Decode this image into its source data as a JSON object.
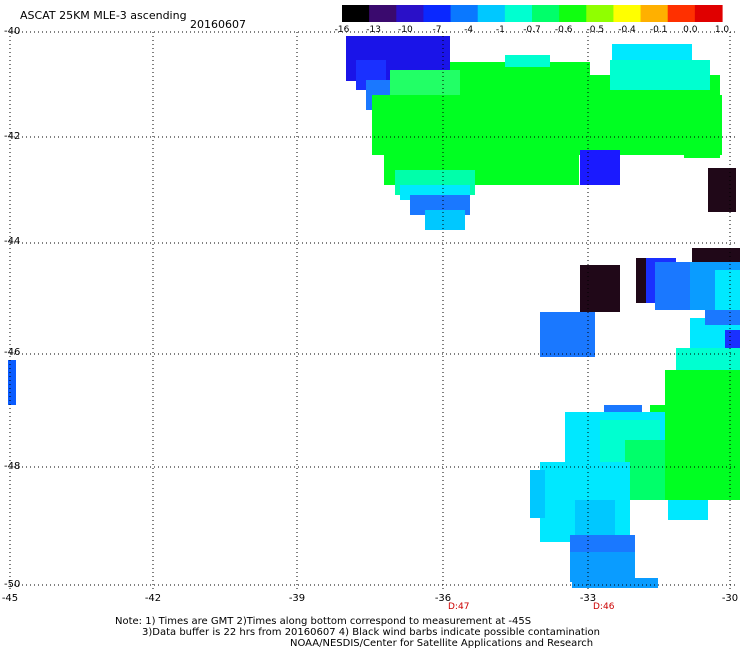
{
  "title": "ASCAT 25KM MLE-3 ascending",
  "date": "20160607",
  "colorbar": {
    "labels": [
      "-16",
      "-13",
      "-10",
      "-7",
      "-4",
      "-1",
      "-0.7",
      "-0.6",
      "-0.5",
      "-0.4",
      "-0.1",
      "0.0",
      "1.0"
    ],
    "colors": [
      "#000000",
      "#3a0a6e",
      "#2a10c8",
      "#0a28ff",
      "#0a78ff",
      "#00c8ff",
      "#00ffd0",
      "#00ff6a",
      "#10ff10",
      "#90ff00",
      "#ffff00",
      "#ffb000",
      "#ff3000",
      "#e00000"
    ]
  },
  "lat_labels": [
    "-40",
    "-42",
    "-44",
    "-46",
    "-48",
    "-50"
  ],
  "lon_labels": [
    "-45",
    "-42",
    "-39",
    "-36",
    "-33",
    "-30"
  ],
  "time_labels": [
    "D:47",
    "D:46"
  ],
  "notes": {
    "line1": "Note: 1) Times are GMT 2)Times along bottom correspond to measurement at -45S",
    "line2": "3)Data buffer is 22 hrs from 20160607 4) Black wind barbs indicate possible contamination",
    "line3": "NOAA/NESDIS/Center for Satellite Applications and Research"
  },
  "colors": {
    "dark": "#200818",
    "blue_deep": "#1a1aff",
    "blue": "#0a5cff",
    "blue_mid": "#1a7aff",
    "cyan": "#00e8ff",
    "cyan_light": "#00ffee",
    "green": "#00ff22",
    "green_mid": "#22ff66",
    "green_cyan": "#00ffaa"
  }
}
